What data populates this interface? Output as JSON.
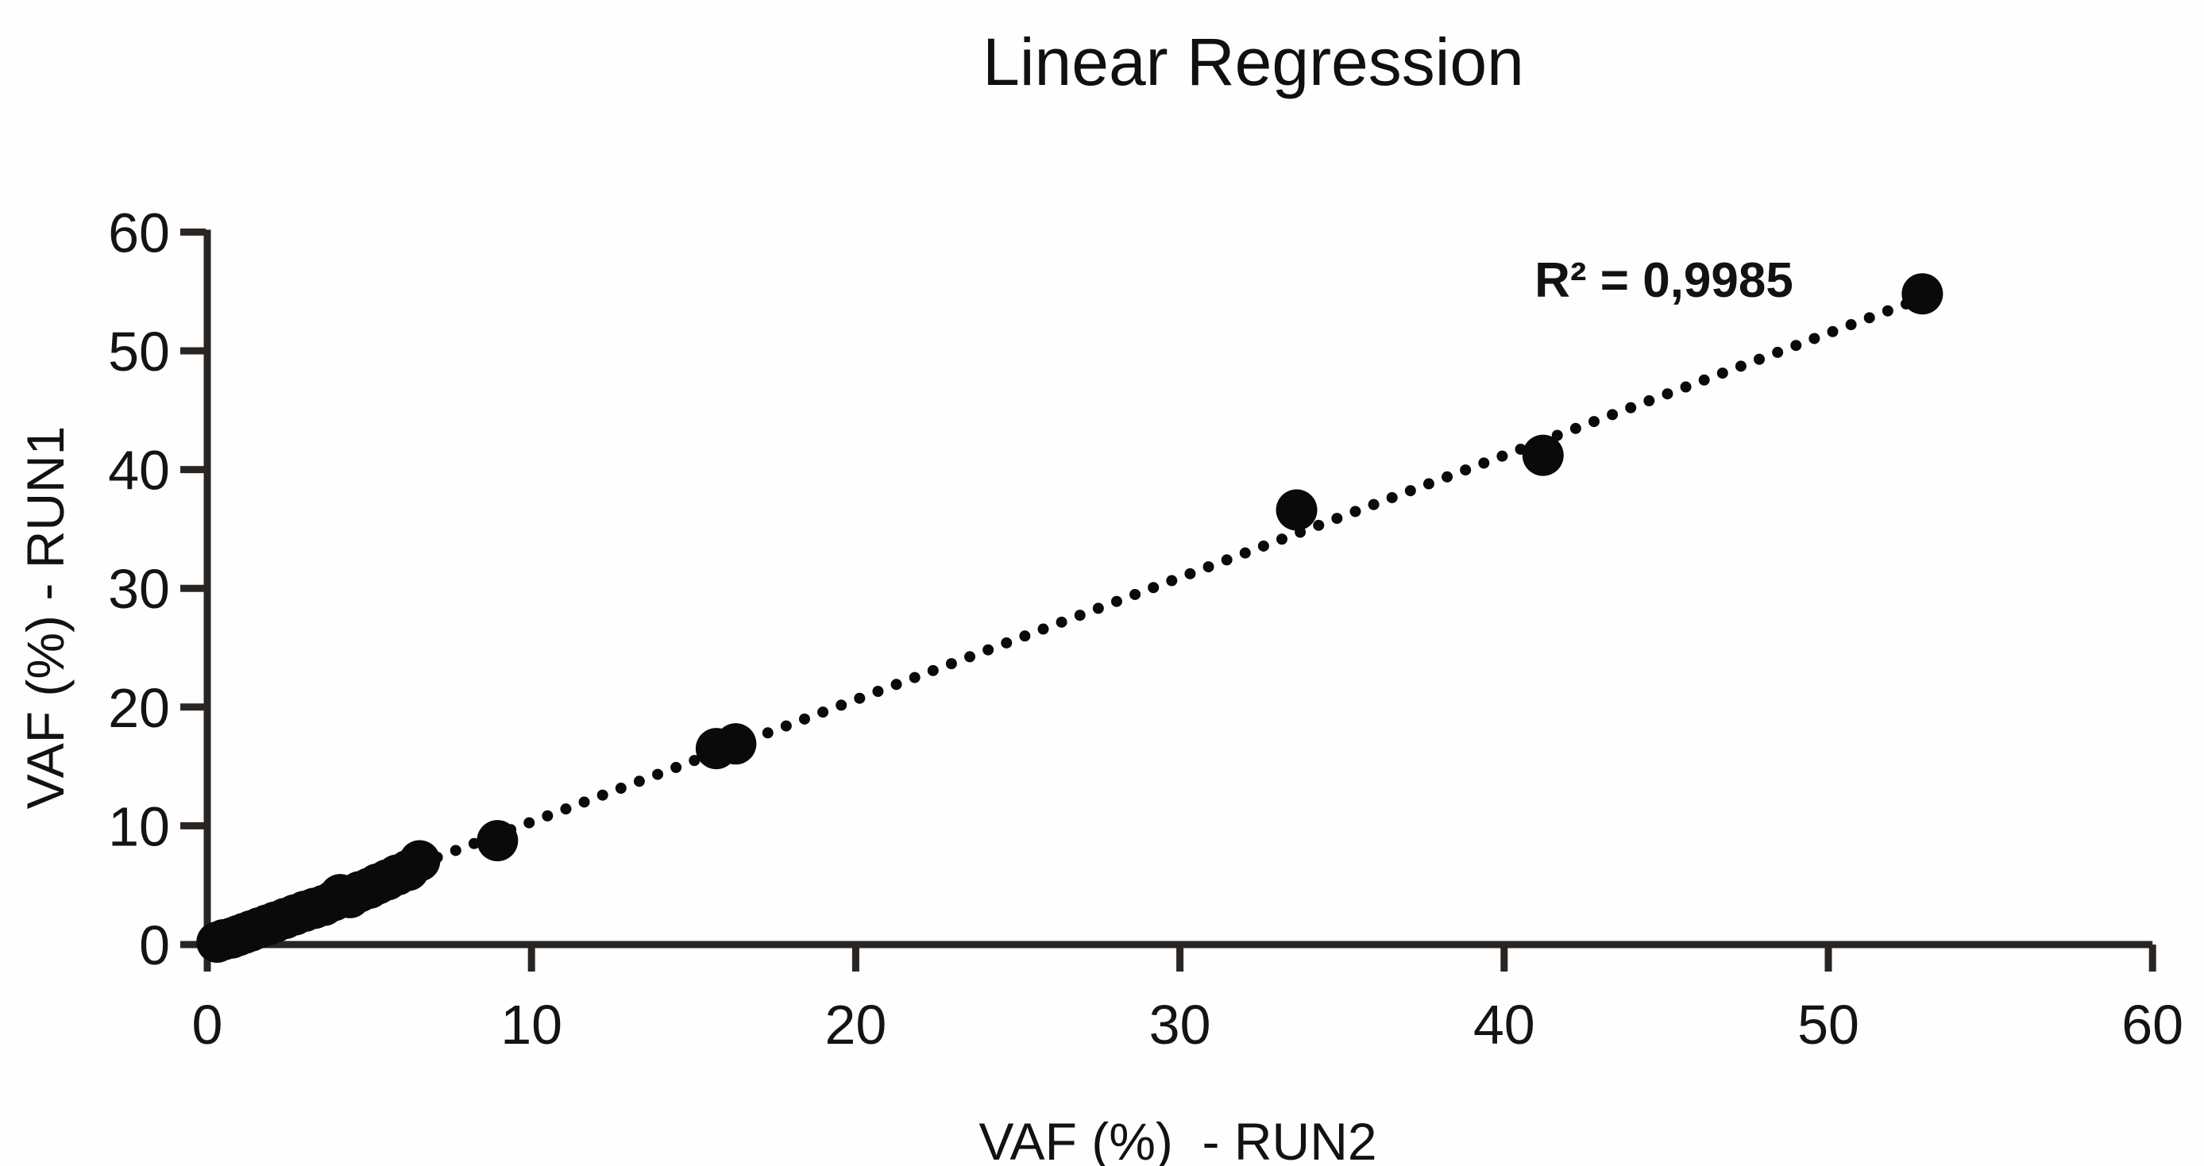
{
  "title": "Linear Regression",
  "annotation": {
    "r_squared": "R² = 0,9985"
  },
  "x_axis": {
    "label": "VAF (%)  - RUN2",
    "ticks": [
      0,
      10,
      20,
      30,
      40,
      50,
      60
    ],
    "range": [
      0,
      60
    ]
  },
  "y_axis": {
    "label": "VAF (%) - RUN1",
    "ticks": [
      0,
      10,
      20,
      30,
      40,
      50,
      60
    ],
    "range": [
      0,
      60
    ]
  },
  "colors": {
    "marker": "#0b0a0a",
    "trendline": "#0b0a0a",
    "axis": "#2b2522",
    "tick_text": "#161412",
    "background": "#fefefe"
  },
  "chart_data": {
    "type": "scatter",
    "title": "Linear Regression",
    "xlabel": "VAF (%) - RUN2",
    "ylabel": "VAF (%) - RUN1",
    "xlim": [
      0,
      60
    ],
    "ylim": [
      0,
      60
    ],
    "grid": false,
    "legend": false,
    "marker_shape": "circle-filled",
    "points": [
      [
        0.3,
        0.2
      ],
      [
        0.5,
        0.4
      ],
      [
        0.75,
        0.55
      ],
      [
        0.95,
        0.75
      ],
      [
        1.15,
        0.95
      ],
      [
        1.35,
        1.15
      ],
      [
        1.6,
        1.4
      ],
      [
        1.85,
        1.65
      ],
      [
        2.1,
        1.9
      ],
      [
        2.4,
        2.2
      ],
      [
        2.7,
        2.5
      ],
      [
        3.0,
        2.8
      ],
      [
        3.3,
        3.05
      ],
      [
        3.6,
        3.3
      ],
      [
        3.9,
        3.7
      ],
      [
        4.1,
        4.2
      ],
      [
        4.4,
        3.95
      ],
      [
        4.7,
        4.45
      ],
      [
        5.0,
        4.75
      ],
      [
        5.25,
        5.1
      ],
      [
        5.55,
        5.45
      ],
      [
        5.85,
        5.85
      ],
      [
        6.2,
        6.25
      ],
      [
        6.55,
        7.05
      ],
      [
        8.95,
        8.75
      ],
      [
        15.7,
        16.5
      ],
      [
        16.3,
        16.9
      ],
      [
        33.6,
        36.6
      ],
      [
        41.2,
        41.2
      ],
      [
        52.9,
        54.8
      ]
    ],
    "trendline": {
      "style": "dotted",
      "start": [
        0.3,
        0.35
      ],
      "end": [
        52.4,
        53.95
      ],
      "r_squared": 0.9985,
      "r_squared_label": "R² = 0,9985"
    }
  }
}
